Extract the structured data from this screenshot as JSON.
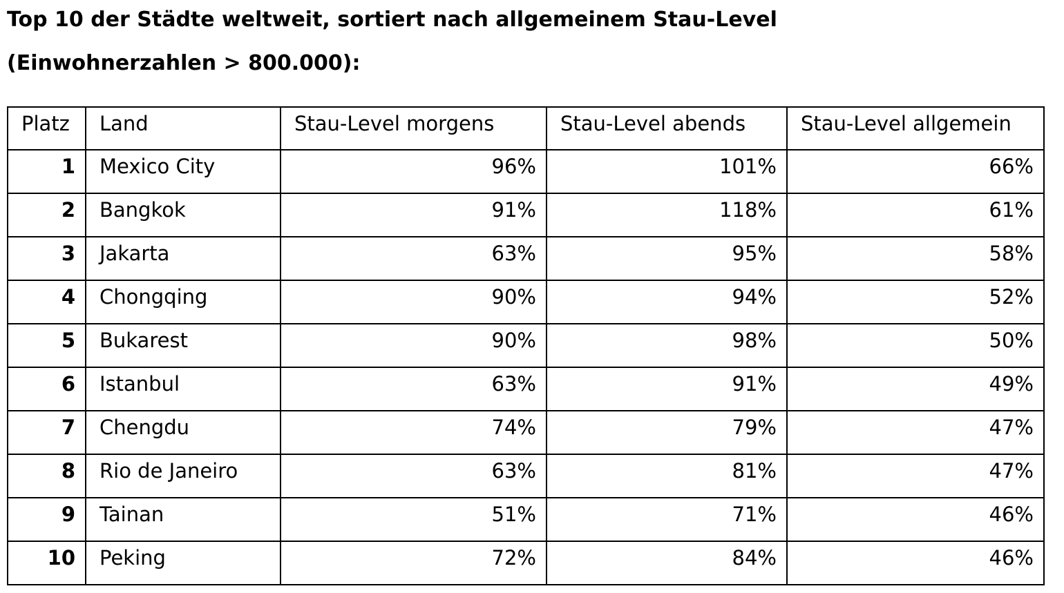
{
  "title": {
    "line1": "Top 10 der Städte weltweit, sortiert nach allgemeinem Stau-Level",
    "line2": "(Einwohnerzahlen > 800.000):"
  },
  "table": {
    "columns": [
      "Platz",
      "Land",
      "Stau-Level morgens",
      "Stau-Level abends",
      "Stau-Level allgemein"
    ],
    "rows": [
      {
        "platz": "1",
        "land": "Mexico City",
        "morgens": "96%",
        "abends": "101%",
        "allgemein": "66%"
      },
      {
        "platz": "2",
        "land": "Bangkok",
        "morgens": "91%",
        "abends": "118%",
        "allgemein": "61%"
      },
      {
        "platz": "3",
        "land": "Jakarta",
        "morgens": "63%",
        "abends": "95%",
        "allgemein": "58%"
      },
      {
        "platz": "4",
        "land": "Chongqing",
        "morgens": "90%",
        "abends": "94%",
        "allgemein": "52%"
      },
      {
        "platz": "5",
        "land": "Bukarest",
        "morgens": "90%",
        "abends": "98%",
        "allgemein": "50%"
      },
      {
        "platz": "6",
        "land": "Istanbul",
        "morgens": "63%",
        "abends": "91%",
        "allgemein": "49%"
      },
      {
        "platz": "7",
        "land": "Chengdu",
        "morgens": "74%",
        "abends": "79%",
        "allgemein": "47%"
      },
      {
        "platz": "8",
        "land": "Rio de Janeiro",
        "morgens": "63%",
        "abends": "81%",
        "allgemein": "47%"
      },
      {
        "platz": "9",
        "land": "Tainan",
        "morgens": "51%",
        "abends": "71%",
        "allgemein": "46%"
      },
      {
        "platz": "10",
        "land": "Peking",
        "morgens": "72%",
        "abends": "84%",
        "allgemein": "46%"
      }
    ]
  },
  "chart_data": {
    "type": "table",
    "title": "Top 10 der Städte weltweit, sortiert nach allgemeinem Stau-Level (Einwohnerzahlen > 800.000)",
    "columns": [
      "Platz",
      "Land",
      "Stau-Level morgens",
      "Stau-Level abends",
      "Stau-Level allgemein"
    ],
    "categories": [
      "Mexico City",
      "Bangkok",
      "Jakarta",
      "Chongqing",
      "Bukarest",
      "Istanbul",
      "Chengdu",
      "Rio de Janeiro",
      "Tainan",
      "Peking"
    ],
    "series": [
      {
        "name": "Stau-Level morgens",
        "values": [
          96,
          91,
          63,
          90,
          90,
          63,
          74,
          63,
          51,
          72
        ]
      },
      {
        "name": "Stau-Level abends",
        "values": [
          101,
          118,
          95,
          94,
          98,
          91,
          79,
          81,
          71,
          84
        ]
      },
      {
        "name": "Stau-Level allgemein",
        "values": [
          66,
          61,
          58,
          52,
          50,
          49,
          47,
          47,
          46,
          46
        ]
      }
    ],
    "unit": "%"
  }
}
